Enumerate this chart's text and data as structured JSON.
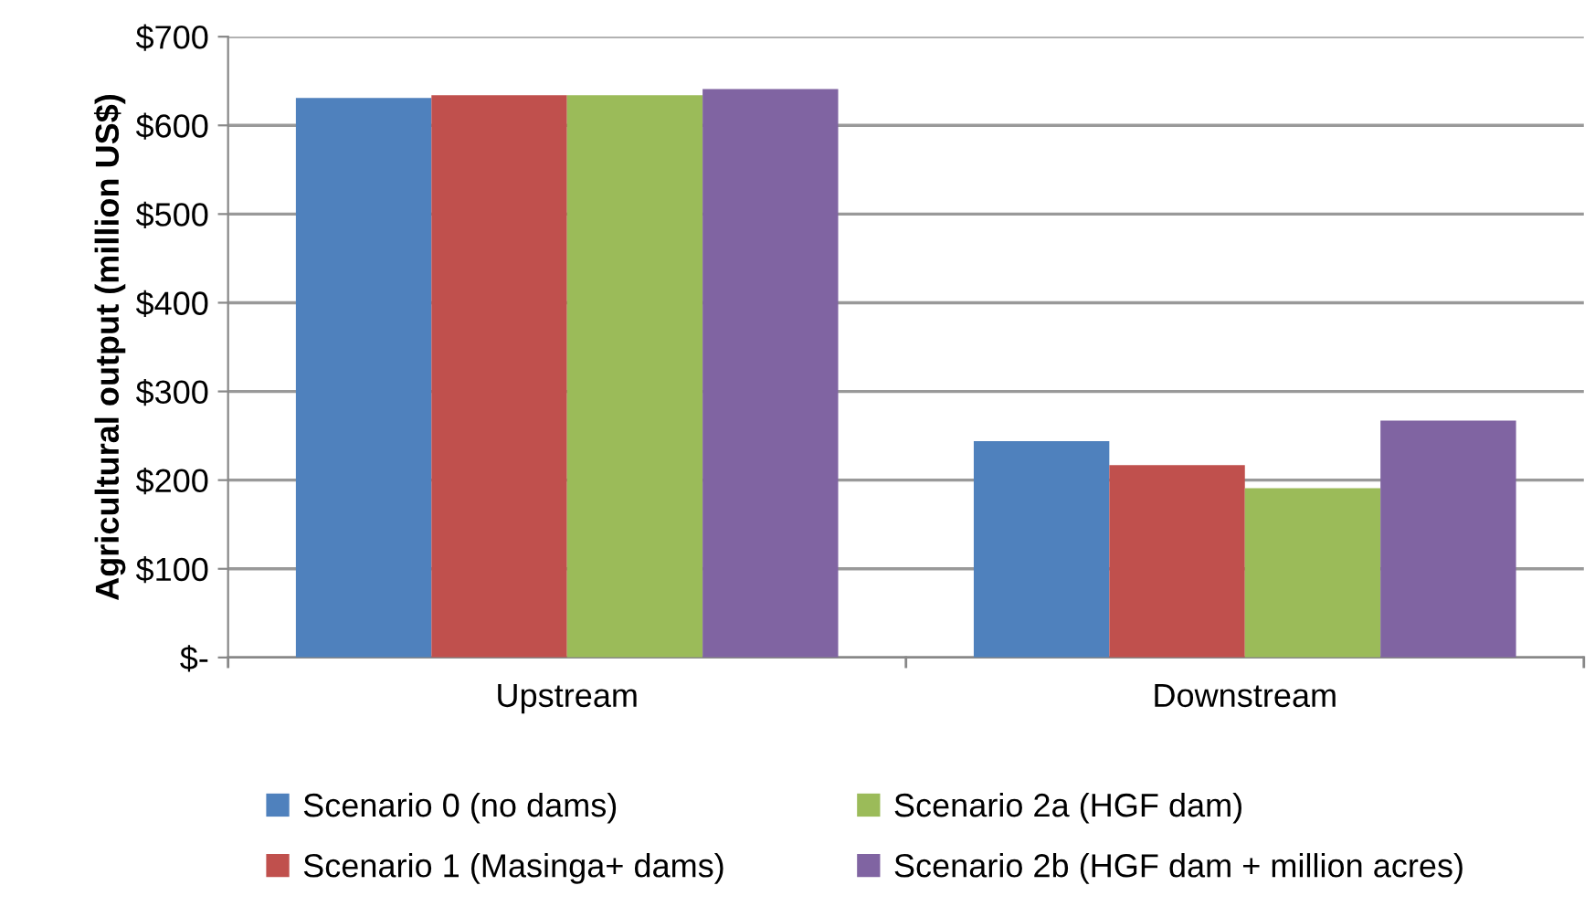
{
  "chart_data": {
    "type": "bar",
    "ylabel": "Agricultural output (million US$)",
    "categories": [
      "Upstream",
      "Downstream"
    ],
    "series": [
      {
        "name": "Scenario 0 (no dams)",
        "color": "#4f81bd",
        "values": [
          631,
          244
        ]
      },
      {
        "name": "Scenario 1 (Masinga+ dams)",
        "color": "#c0504d",
        "values": [
          634,
          217
        ]
      },
      {
        "name": "Scenario 2a (HGF dam)",
        "color": "#9bbb59",
        "values": [
          634,
          191
        ]
      },
      {
        "name": "Scenario 2b (HGF dam + million acres)",
        "color": "#8064a2",
        "values": [
          641,
          267
        ]
      }
    ],
    "ylim": [
      0,
      700
    ],
    "yticks": [
      {
        "value": 0,
        "label": "$-"
      },
      {
        "value": 100,
        "label": "$100"
      },
      {
        "value": 200,
        "label": "$200"
      },
      {
        "value": 300,
        "label": "$300"
      },
      {
        "value": 400,
        "label": "$400"
      },
      {
        "value": 500,
        "label": "$500"
      },
      {
        "value": 600,
        "label": "$600"
      },
      {
        "value": 700,
        "label": "$700"
      }
    ],
    "grid": "y",
    "legend": "bottom"
  }
}
